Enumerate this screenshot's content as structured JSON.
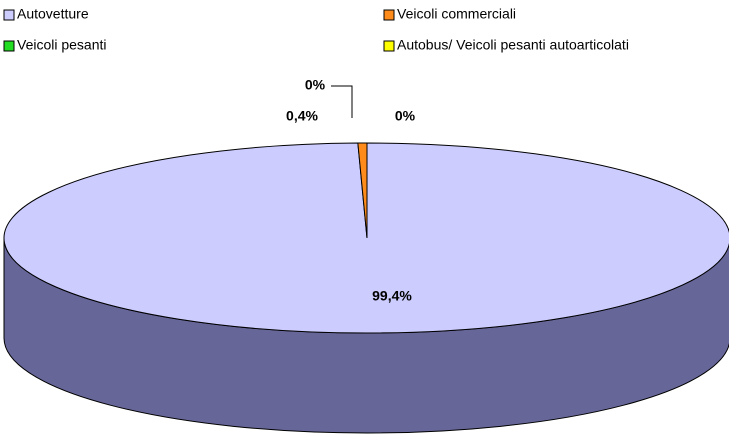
{
  "chart_data": {
    "type": "pie",
    "categories": [
      "Autovetture",
      "Veicoli commerciali",
      "Veicoli pesanti",
      "Autobus/ Veicoli pesanti autoarticolati"
    ],
    "values": [
      99.4,
      0.4,
      0,
      0
    ],
    "value_labels": [
      "99,4%",
      "0,4%",
      "0%",
      "0%"
    ],
    "colors": [
      "#ccccff",
      "#ff8c1a",
      "#22dd22",
      "#ffff00"
    ],
    "legend": "top"
  }
}
